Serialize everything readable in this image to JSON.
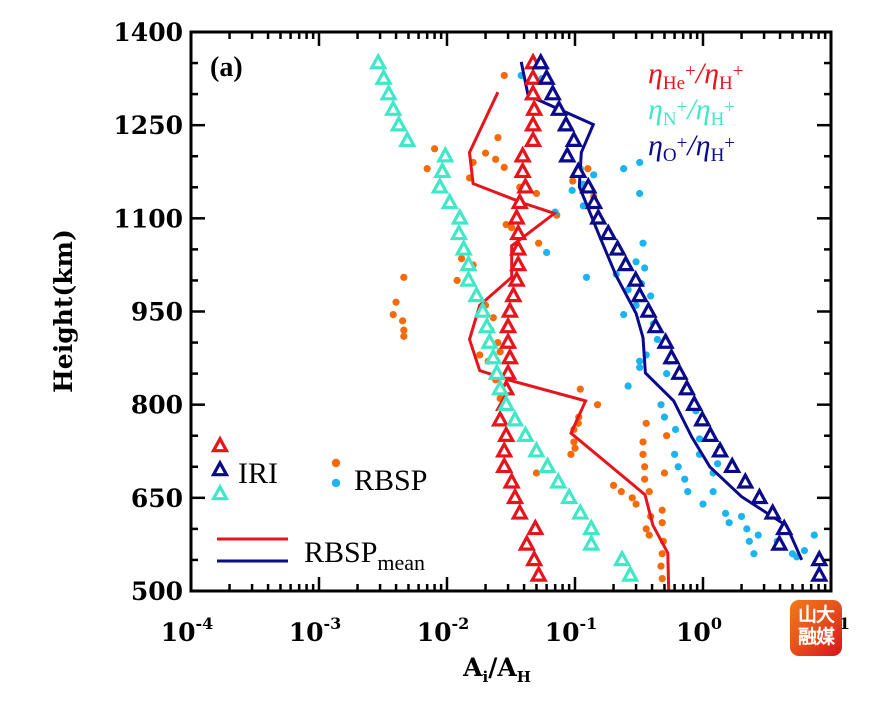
{
  "chart_data": {
    "type": "scatter",
    "panel_label": "(a)",
    "xlabel": "A_i/A_H",
    "xlabel_parts": {
      "main1": "A",
      "sub1": "i",
      "slash": "/",
      "main2": "A",
      "sub2": "H"
    },
    "ylabel": "Height(km)",
    "xscale": "log",
    "xlim": [
      0.0001,
      10
    ],
    "ylim": [
      500,
      1400
    ],
    "xticks": [
      0.0001,
      0.001,
      0.01,
      0.1,
      1,
      10
    ],
    "xtick_labels": [
      {
        "base": "10",
        "exp": "-4"
      },
      {
        "base": "10",
        "exp": "-3"
      },
      {
        "base": "10",
        "exp": "-2"
      },
      {
        "base": "10",
        "exp": "-1"
      },
      {
        "base": "10",
        "exp": "0"
      },
      {
        "base": "10",
        "exp": "1"
      }
    ],
    "yticks": [
      500,
      650,
      800,
      950,
      1100,
      1250,
      1400
    ],
    "ytick_labels": [
      "500",
      "650",
      "800",
      "950",
      "1100",
      "1250",
      "1400"
    ],
    "grid": false,
    "colors": {
      "he": "#e8141c",
      "n": "#40e8c8",
      "o": "#0a0a8a",
      "rbsp_orange": "#f56a0a",
      "rbsp_blue": "#1ab4f0",
      "axis": "#000000"
    },
    "ratio_legend": [
      {
        "num": "He",
        "den": "H",
        "color_key": "he"
      },
      {
        "num": "N",
        "den": "H",
        "color_key": "n"
      },
      {
        "num": "O",
        "den": "H",
        "color_key": "o"
      }
    ],
    "legend": {
      "iri_label": "IRI",
      "rbsp_label": "RBSP",
      "mean_label_main": "RBSP",
      "mean_label_sub": "mean",
      "placement": "bottom-left"
    },
    "iri_heights": [
      1350,
      1325,
      1300,
      1275,
      1250,
      1225,
      1200,
      1175,
      1150,
      1125,
      1100,
      1075,
      1050,
      1025,
      1000,
      975,
      950,
      925,
      900,
      875,
      850,
      825,
      800,
      775,
      750,
      725,
      700,
      675,
      650,
      625,
      600,
      575,
      550,
      525
    ],
    "series": [
      {
        "name": "IRI He+/H+",
        "kind": "triangle",
        "color_key": "he",
        "values": [
          0.047,
          0.047,
          0.047,
          0.048,
          0.047,
          0.047,
          0.039,
          0.039,
          0.041,
          0.037,
          0.035,
          0.036,
          0.036,
          0.036,
          0.035,
          0.033,
          0.031,
          0.03,
          0.03,
          0.031,
          0.03,
          0.029,
          0.028,
          0.026,
          0.029,
          0.028,
          0.028,
          0.032,
          0.034,
          0.037,
          0.049,
          0.042,
          0.048,
          0.052
        ]
      },
      {
        "name": "IRI N+/H+",
        "kind": "triangle",
        "color_key": "n",
        "values": [
          0.0029,
          0.0032,
          0.0035,
          0.0038,
          0.0042,
          0.0049,
          0.0097,
          0.0092,
          0.0088,
          0.0105,
          0.0126,
          0.0124,
          0.0135,
          0.0147,
          0.0147,
          0.017,
          0.019,
          0.0205,
          0.0215,
          0.023,
          0.0245,
          0.026,
          0.029,
          0.034,
          0.041,
          0.05,
          0.061,
          0.074,
          0.09,
          0.11,
          0.134,
          0.134,
          0.233,
          0.27
        ]
      },
      {
        "name": "IRI O+/H+",
        "kind": "triangle",
        "color_key": "o",
        "values": [
          0.054,
          0.06,
          0.067,
          0.075,
          0.085,
          0.098,
          0.087,
          0.106,
          0.127,
          0.141,
          0.152,
          0.182,
          0.215,
          0.249,
          0.298,
          0.32,
          0.375,
          0.426,
          0.51,
          0.567,
          0.655,
          0.748,
          0.854,
          0.987,
          1.14,
          1.36,
          1.69,
          2.14,
          2.76,
          3.5,
          4.31,
          3.95,
          8.1,
          8.1
        ]
      },
      {
        "name": "RBSP_mean He+/H+",
        "kind": "line",
        "color_key": "he",
        "points": [
          [
            0.025,
            1303
          ],
          [
            0.015,
            1206
          ],
          [
            0.016,
            1156
          ],
          [
            0.04,
            1124
          ],
          [
            0.069,
            1108
          ],
          [
            0.039,
            1069
          ],
          [
            0.032,
            1056
          ],
          [
            0.032,
            1005
          ],
          [
            0.018,
            960
          ],
          [
            0.015,
            905
          ],
          [
            0.018,
            855
          ],
          [
            0.03,
            840
          ],
          [
            0.121,
            806
          ],
          [
            0.093,
            754
          ],
          [
            0.352,
            655
          ],
          [
            0.406,
            606
          ],
          [
            0.531,
            561
          ],
          [
            0.54,
            500
          ]
        ]
      },
      {
        "name": "RBSP_mean O+/H+",
        "kind": "line",
        "color_key": "o",
        "points": [
          [
            0.038,
            1352
          ],
          [
            0.043,
            1298
          ],
          [
            0.139,
            1251
          ],
          [
            0.112,
            1206
          ],
          [
            0.108,
            1151
          ],
          [
            0.127,
            1116
          ],
          [
            0.152,
            1076
          ],
          [
            0.209,
            1008
          ],
          [
            0.3,
            947
          ],
          [
            0.34,
            908
          ],
          [
            0.355,
            851
          ],
          [
            0.59,
            806
          ],
          [
            0.817,
            748
          ],
          [
            1.13,
            700
          ],
          [
            2.0,
            652
          ],
          [
            4.5,
            605
          ],
          [
            5.9,
            550
          ]
        ]
      },
      {
        "name": "RBSP He+/H+",
        "kind": "dot",
        "color_key": "rbsp_orange",
        "points": [
          [
            0.028,
            1330
          ],
          [
            0.025,
            1230
          ],
          [
            0.02,
            1205
          ],
          [
            0.008,
            1212
          ],
          [
            0.016,
            1190
          ],
          [
            0.024,
            1195
          ],
          [
            0.007,
            1180
          ],
          [
            0.037,
            1150
          ],
          [
            0.015,
            1165
          ],
          [
            0.028,
            1182
          ],
          [
            0.05,
            1140
          ],
          [
            0.14,
            1135
          ],
          [
            0.096,
            1160
          ],
          [
            0.126,
            1180
          ],
          [
            0.072,
            1105
          ],
          [
            0.036,
            1100
          ],
          [
            0.032,
            1085
          ],
          [
            0.029,
            1090
          ],
          [
            0.052,
            1060
          ],
          [
            0.013,
            1035
          ],
          [
            0.016,
            1025
          ],
          [
            0.012,
            1000
          ],
          [
            0.0046,
            1005
          ],
          [
            0.004,
            965
          ],
          [
            0.0038,
            945
          ],
          [
            0.0045,
            935
          ],
          [
            0.0046,
            920
          ],
          [
            0.0046,
            910
          ],
          [
            0.02,
            960
          ],
          [
            0.023,
            940
          ],
          [
            0.022,
            920
          ],
          [
            0.025,
            900
          ],
          [
            0.026,
            885
          ],
          [
            0.018,
            880
          ],
          [
            0.021,
            870
          ],
          [
            0.024,
            840
          ],
          [
            0.03,
            820
          ],
          [
            0.026,
            810
          ],
          [
            0.028,
            800
          ],
          [
            0.11,
            825
          ],
          [
            0.15,
            800
          ],
          [
            0.107,
            780
          ],
          [
            0.106,
            770
          ],
          [
            0.098,
            760
          ],
          [
            0.098,
            740
          ],
          [
            0.1,
            730
          ],
          [
            0.093,
            720
          ],
          [
            0.05,
            690
          ],
          [
            0.2,
            670
          ],
          [
            0.23,
            660
          ],
          [
            0.28,
            650
          ],
          [
            0.3,
            640
          ],
          [
            0.36,
            770
          ],
          [
            0.34,
            740
          ],
          [
            0.34,
            720
          ],
          [
            0.35,
            700
          ],
          [
            0.35,
            680
          ],
          [
            0.38,
            660
          ],
          [
            0.39,
            620
          ],
          [
            0.36,
            600
          ],
          [
            0.38,
            590
          ],
          [
            0.48,
            630
          ],
          [
            0.48,
            610
          ],
          [
            0.49,
            580
          ],
          [
            0.48,
            560
          ],
          [
            0.47,
            540
          ],
          [
            0.48,
            520
          ],
          [
            0.52,
            750
          ],
          [
            0.5,
            690
          ]
        ]
      },
      {
        "name": "RBSP O+/H+",
        "kind": "dot",
        "color_key": "rbsp_blue",
        "points": [
          [
            0.038,
            1330
          ],
          [
            0.055,
            1325
          ],
          [
            0.24,
            1180
          ],
          [
            0.32,
            1190
          ],
          [
            0.14,
            1170
          ],
          [
            0.11,
            1180
          ],
          [
            0.115,
            1155
          ],
          [
            0.095,
            1145
          ],
          [
            0.32,
            1140
          ],
          [
            0.07,
            1110
          ],
          [
            0.116,
            1120
          ],
          [
            0.06,
            1045
          ],
          [
            0.123,
            1005
          ],
          [
            0.35,
            1020
          ],
          [
            0.3,
            1030
          ],
          [
            0.33,
            995
          ],
          [
            0.39,
            975
          ],
          [
            0.3,
            960
          ],
          [
            0.24,
            945
          ],
          [
            0.41,
            930
          ],
          [
            0.44,
            905
          ],
          [
            0.36,
            880
          ],
          [
            0.32,
            870
          ],
          [
            0.32,
            860
          ],
          [
            0.54,
            870
          ],
          [
            0.52,
            850
          ],
          [
            0.26,
            830
          ],
          [
            0.47,
            800
          ],
          [
            0.5,
            780
          ],
          [
            0.61,
            760
          ],
          [
            0.88,
            790
          ],
          [
            0.6,
            720
          ],
          [
            0.64,
            700
          ],
          [
            0.94,
            745
          ],
          [
            0.94,
            720
          ],
          [
            1.3,
            705
          ],
          [
            1.2,
            690
          ],
          [
            0.72,
            680
          ],
          [
            0.76,
            660
          ],
          [
            1.0,
            640
          ],
          [
            1.2,
            660
          ],
          [
            1.5,
            625
          ],
          [
            1.6,
            610
          ],
          [
            2.0,
            620
          ],
          [
            2.2,
            600
          ],
          [
            2.3,
            580
          ],
          [
            2.5,
            560
          ],
          [
            2.7,
            590
          ],
          [
            3.8,
            580
          ],
          [
            5.0,
            560
          ],
          [
            5.4,
            555
          ],
          [
            6.2,
            565
          ],
          [
            7.4,
            590
          ],
          [
            0.34,
            1060
          ],
          [
            0.21,
            1010
          ],
          [
            0.26,
            985
          ]
        ]
      }
    ]
  },
  "watermark": {
    "text_line1": "山大",
    "text_line2": "融媒"
  }
}
